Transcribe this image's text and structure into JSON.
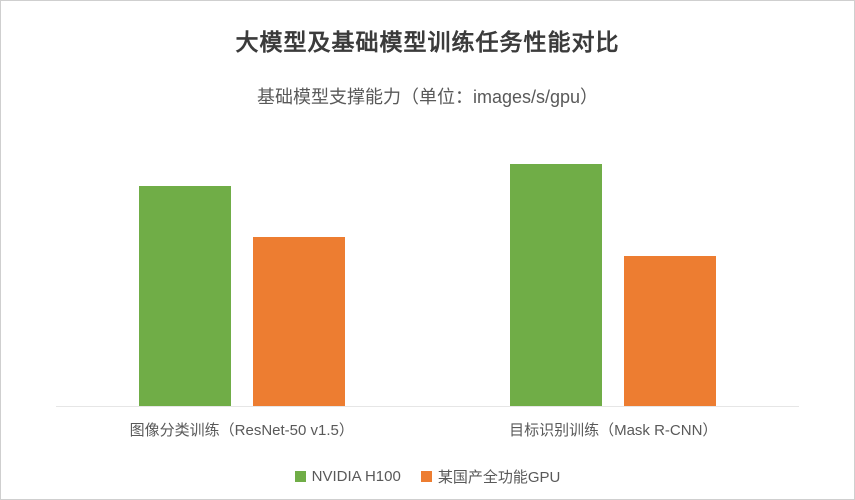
{
  "chart_data": {
    "type": "bar",
    "title": "大模型及基础模型训练任务性能对比",
    "subtitle": "基础模型支撑能力（单位：images/s/gpu）",
    "categories": [
      "图像分类训练（ResNet-50 v1.5）",
      "目标识别训练（Mask R-CNN）"
    ],
    "series": [
      {
        "id": "nvidia-h100",
        "name": "NVIDIA H100",
        "color": "#70AD47",
        "values": [
          91,
          100
        ]
      },
      {
        "id": "domestic-gpu",
        "name": "某国产全功能GPU",
        "color": "#ED7D31",
        "values": [
          70,
          62
        ]
      }
    ],
    "ylim": [
      0,
      100
    ],
    "grid": false,
    "legend_position": "bottom",
    "xlabel": "",
    "ylabel": ""
  }
}
